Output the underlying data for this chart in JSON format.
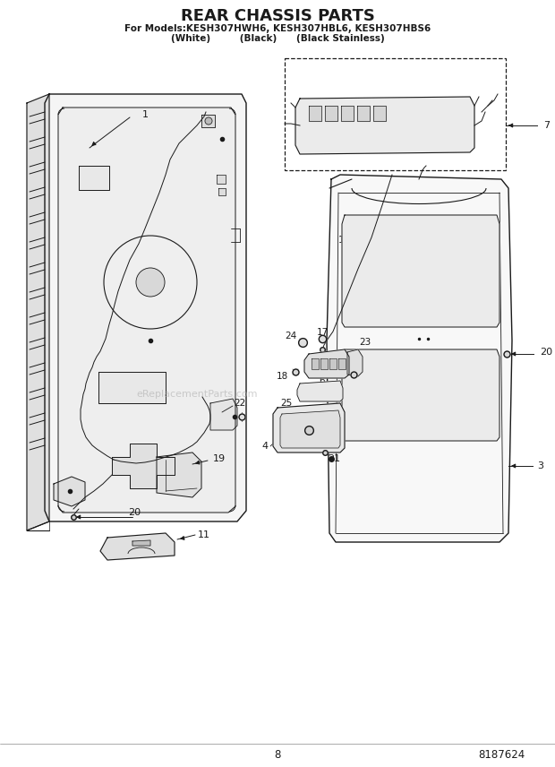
{
  "title": "REAR CHASSIS PARTS",
  "subtitle1": "For Models:KESH307HWH6, KESH307HBL6, KESH307HBS6",
  "subtitle2": "(White)         (Black)      (Black Stainless)",
  "page_number": "8",
  "part_number": "8187624",
  "bg_color": "#ffffff",
  "lc": "#1a1a1a",
  "fig_width": 6.2,
  "fig_height": 8.56,
  "dpi": 100,
  "watermark": "eReplacementParts.com"
}
